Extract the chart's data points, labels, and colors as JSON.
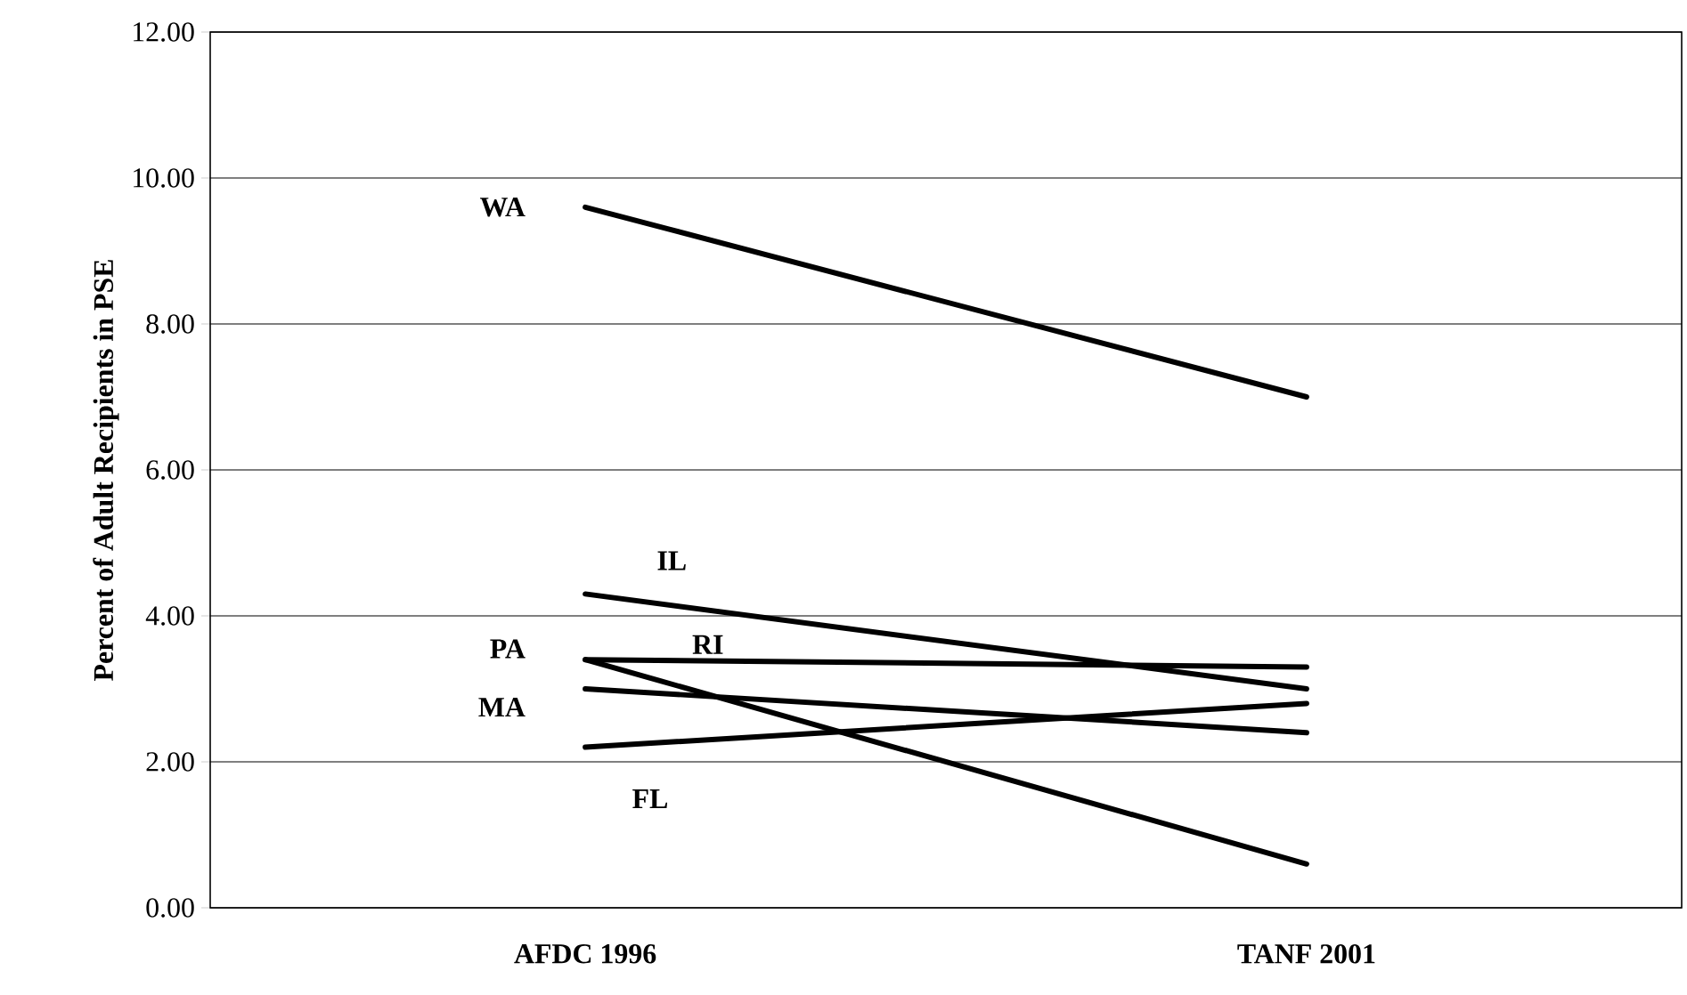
{
  "chart_data": {
    "type": "line",
    "ylabel": "Percent of Adult Recipients in PSE",
    "categories": [
      "AFDC 1996",
      "TANF 2001"
    ],
    "ylim": [
      0,
      12
    ],
    "yticks": [
      {
        "value": 0,
        "label": "0.00"
      },
      {
        "value": 2,
        "label": "2.00"
      },
      {
        "value": 4,
        "label": "4.00"
      },
      {
        "value": 6,
        "label": "6.00"
      },
      {
        "value": 8,
        "label": "8.00"
      },
      {
        "value": 10,
        "label": "10.00"
      },
      {
        "value": 12,
        "label": "12.00"
      }
    ],
    "grid": "y",
    "legend": false,
    "marker": "none",
    "line_style": "solid",
    "series": [
      {
        "name": "WA",
        "color": "#000000",
        "values": [
          9.6,
          7.0
        ]
      },
      {
        "name": "IL",
        "color": "#000000",
        "values": [
          4.3,
          3.0
        ]
      },
      {
        "name": "RI",
        "color": "#000000",
        "values": [
          3.4,
          3.3
        ]
      },
      {
        "name": "PA",
        "color": "#000000",
        "values": [
          3.4,
          0.6
        ]
      },
      {
        "name": "MA",
        "color": "#000000",
        "values": [
          3.0,
          2.4
        ]
      },
      {
        "name": "FL",
        "color": "#000000",
        "values": [
          2.2,
          2.8
        ]
      }
    ]
  }
}
